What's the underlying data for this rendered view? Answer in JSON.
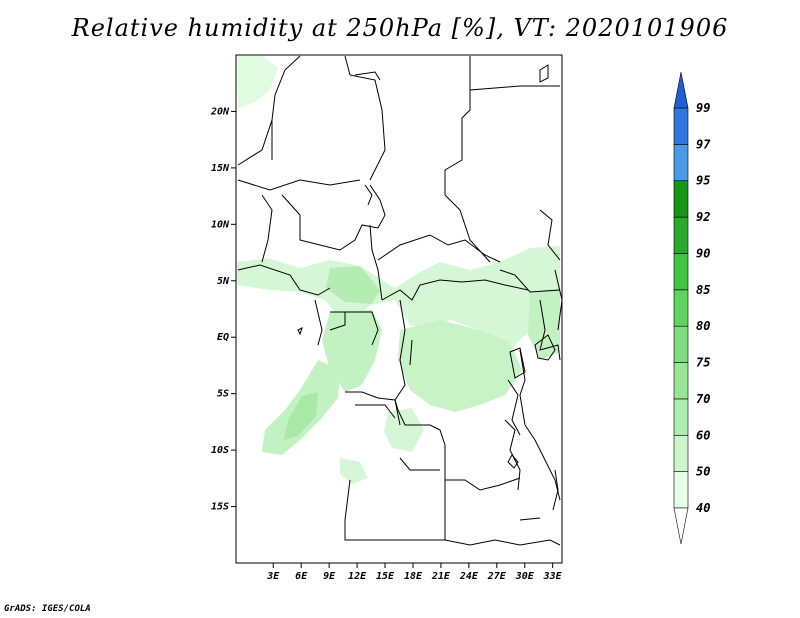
{
  "title": "Relative humidity at 250hPa [%], VT: 2020101906",
  "footer": "GrADS: IGES/COLA",
  "map": {
    "lon_range": [
      -1,
      34
    ],
    "lat_range": [
      -20,
      25
    ],
    "lat_ticks": [
      {
        "value": 20,
        "label": "20N"
      },
      {
        "value": 15,
        "label": "15N"
      },
      {
        "value": 10,
        "label": "10N"
      },
      {
        "value": 5,
        "label": "5N"
      },
      {
        "value": 0,
        "label": "EQ"
      },
      {
        "value": -5,
        "label": "5S"
      },
      {
        "value": -10,
        "label": "10S"
      },
      {
        "value": -15,
        "label": "15S"
      }
    ],
    "lon_ticks": [
      {
        "value": 3,
        "label": "3E"
      },
      {
        "value": 6,
        "label": "6E"
      },
      {
        "value": 9,
        "label": "9E"
      },
      {
        "value": 12,
        "label": "12E"
      },
      {
        "value": 15,
        "label": "15E"
      },
      {
        "value": 18,
        "label": "18E"
      },
      {
        "value": 21,
        "label": "21E"
      },
      {
        "value": 24,
        "label": "24E"
      },
      {
        "value": 27,
        "label": "27E"
      },
      {
        "value": 30,
        "label": "30E"
      },
      {
        "value": 33,
        "label": "33E"
      }
    ]
  },
  "colorbar": {
    "levels": [
      "40",
      "50",
      "60",
      "70",
      "75",
      "80",
      "85",
      "90",
      "92",
      "95",
      "97",
      "99"
    ],
    "colors": [
      "#e6ffe6",
      "#ccf5cc",
      "#b0eeb0",
      "#96e696",
      "#7edd7e",
      "#5fd45f",
      "#3fc83f",
      "#2aaa2a",
      "#159615",
      "#4a9ae8",
      "#2f78e0",
      "#1f5fd0"
    ],
    "under_color": "#ffffff",
    "over_color": "#1f5fd0"
  },
  "colors": {
    "land_border": "#000000",
    "humid_light": "#e0fbe0",
    "humid_mid": "#c2f2c2",
    "humid_dense": "#a4e8a4"
  }
}
